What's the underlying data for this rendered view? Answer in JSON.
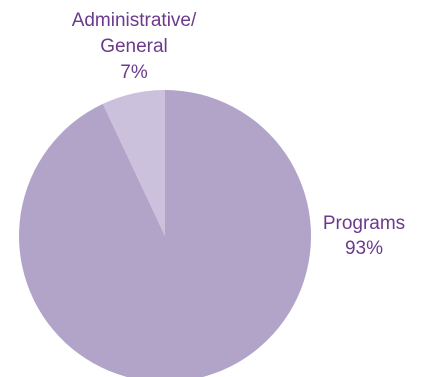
{
  "chart_data": {
    "type": "pie",
    "title": "",
    "start_angle_deg": 0,
    "direction": "clockwise",
    "slices": [
      {
        "label_lines": [
          "Programs",
          "93%"
        ],
        "value": 93,
        "color": "#b2a3c9"
      },
      {
        "label_lines": [
          "Administrative/",
          "General",
          "7%"
        ],
        "value": 7,
        "color": "#cbc1dd"
      }
    ],
    "label_color": "#6b3a8c",
    "legend": "none"
  }
}
